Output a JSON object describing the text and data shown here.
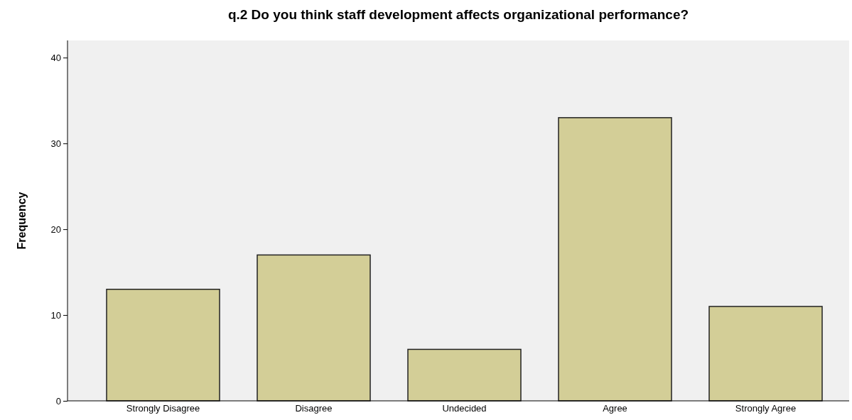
{
  "chart_data": {
    "type": "bar",
    "title": "q.2 Do you think staff development affects organizational performance?",
    "ylabel": "Frequency",
    "categories": [
      "Strongly Disagree",
      "Disagree",
      "Undecided",
      "Agree",
      "Strongly Agree"
    ],
    "values": [
      13,
      17,
      6,
      33,
      11
    ],
    "color": "#d3ce97",
    "ylim": [
      0,
      42
    ],
    "yticks": [
      0,
      10,
      20,
      30,
      40
    ],
    "grid": false
  }
}
